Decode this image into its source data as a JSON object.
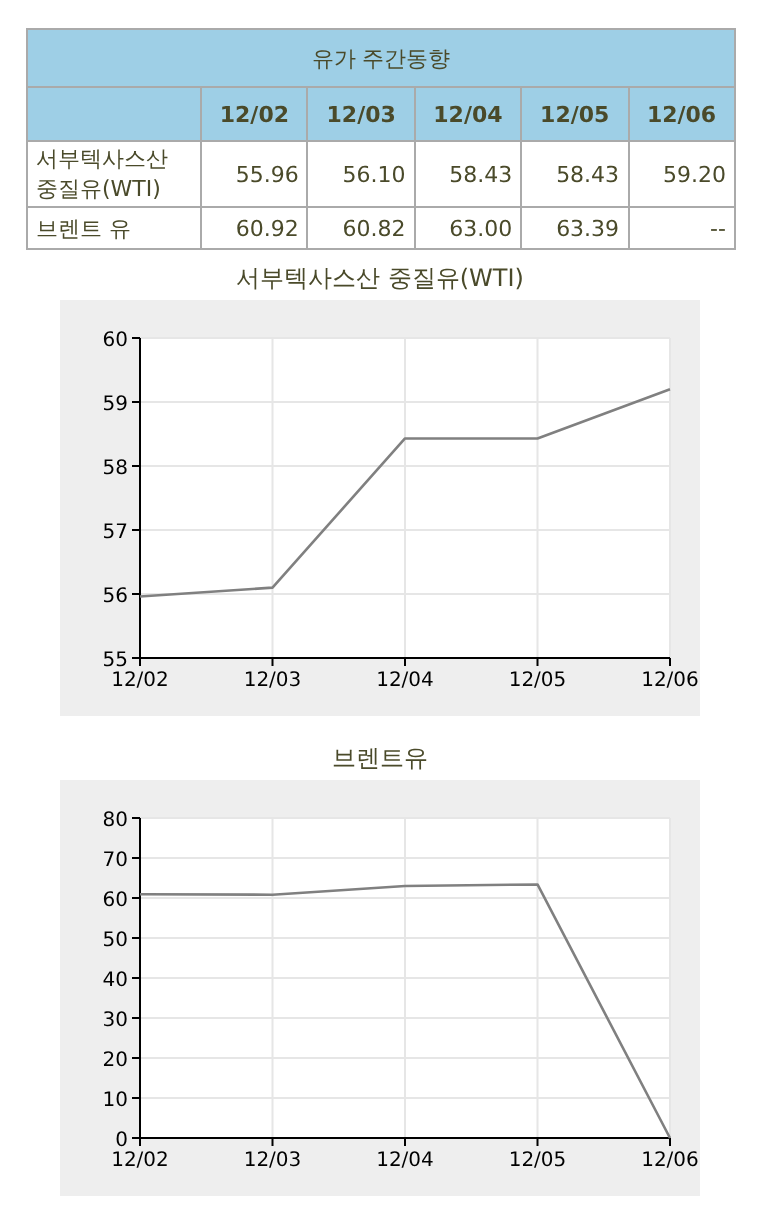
{
  "chart_data": [
    {
      "type": "other",
      "title": "유가 주간동향",
      "categories": [
        "12/02",
        "12/03",
        "12/04",
        "12/05",
        "12/06"
      ],
      "series": [
        {
          "name": "서부텍사스산 중질유(WTI)",
          "values": [
            55.96,
            56.1,
            58.43,
            58.43,
            59.2
          ],
          "value_labels": [
            "55.96",
            "56.10",
            "58.43",
            "58.43",
            "59.20"
          ]
        },
        {
          "name": "브렌트 유",
          "values": [
            60.92,
            60.82,
            63.0,
            63.39,
            null
          ],
          "value_labels": [
            "60.92",
            "60.82",
            "63.00",
            "63.39",
            "--"
          ]
        }
      ]
    },
    {
      "type": "line",
      "title": "서부텍사스산 중질유(WTI)",
      "categories": [
        "12/02",
        "12/03",
        "12/04",
        "12/05",
        "12/06"
      ],
      "series": [
        {
          "color": "#808080",
          "values": [
            55.96,
            56.1,
            58.43,
            58.43,
            59.2
          ]
        }
      ],
      "ylim": [
        55,
        60
      ],
      "yticks": [
        55,
        56,
        57,
        58,
        59,
        60
      ],
      "grid": true
    },
    {
      "type": "line",
      "title": "브렌트유",
      "categories": [
        "12/02",
        "12/03",
        "12/04",
        "12/05",
        "12/06"
      ],
      "series": [
        {
          "color": "#808080",
          "values": [
            60.92,
            60.82,
            63.0,
            63.39,
            0
          ]
        }
      ],
      "ylim": [
        0,
        80
      ],
      "yticks": [
        0,
        10,
        20,
        30,
        40,
        50,
        60,
        70,
        80
      ],
      "grid": true
    }
  ]
}
